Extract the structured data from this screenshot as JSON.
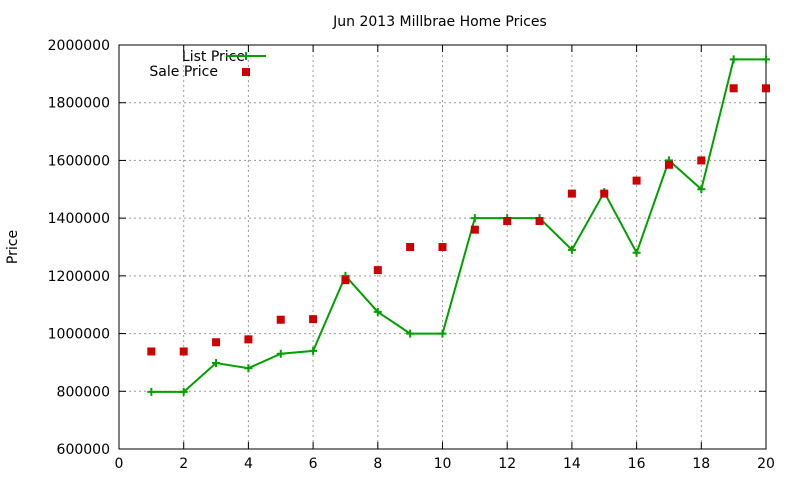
{
  "chart_data": {
    "type": "line",
    "title": "Jun 2013 Millbrae Home Prices",
    "xlabel": "",
    "ylabel": "Price",
    "xlim": [
      0,
      20
    ],
    "ylim": [
      600000,
      2000000
    ],
    "x_ticks": [
      0,
      2,
      4,
      6,
      8,
      10,
      12,
      14,
      16,
      18,
      20
    ],
    "y_ticks": [
      600000,
      800000,
      1000000,
      1200000,
      1400000,
      1600000,
      1800000,
      2000000
    ],
    "grid": true,
    "legend_position": "top-left",
    "x": [
      1,
      2,
      3,
      4,
      5,
      6,
      7,
      8,
      9,
      10,
      11,
      12,
      13,
      14,
      15,
      16,
      17,
      18,
      19,
      20
    ],
    "series": [
      {
        "name": "List Price",
        "style": "line-with-plus-markers",
        "color": "#00a000",
        "values": [
          798000,
          798000,
          898000,
          880000,
          930000,
          940000,
          1200000,
          1075000,
          1000000,
          1000000,
          1400000,
          1400000,
          1400000,
          1290000,
          1490000,
          1280000,
          1600000,
          1500000,
          1950000,
          1950000
        ]
      },
      {
        "name": "Sale Price",
        "style": "square-markers",
        "color": "#cc0000",
        "values": [
          938000,
          938000,
          970000,
          980000,
          1048000,
          1050000,
          1185000,
          1220000,
          1300000,
          1300000,
          1360000,
          1390000,
          1390000,
          1485000,
          1485000,
          1530000,
          1585000,
          1600000,
          1850000,
          1850000
        ]
      }
    ]
  }
}
